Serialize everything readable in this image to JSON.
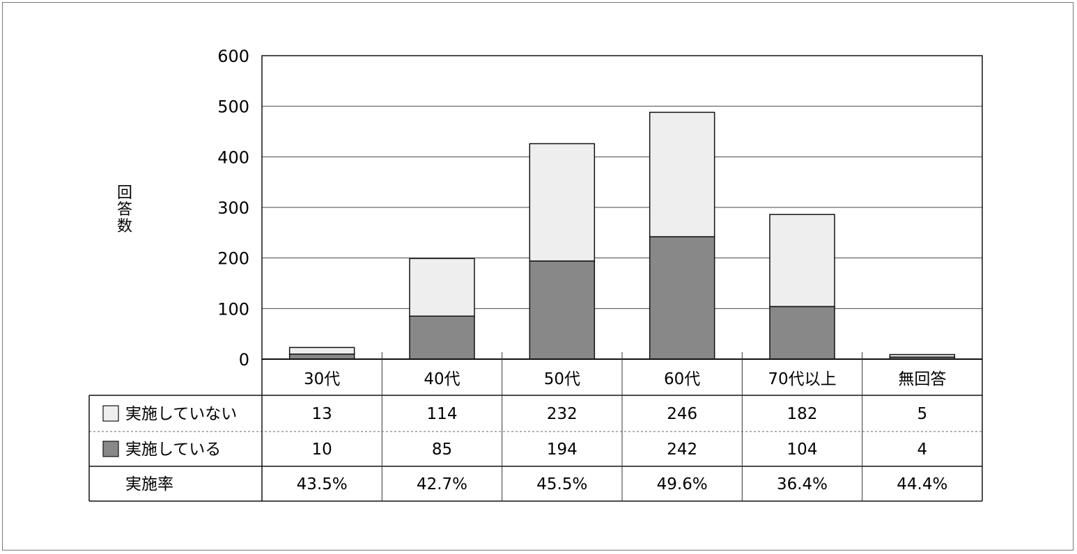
{
  "chart_data": {
    "type": "bar",
    "stacked": true,
    "ylabel": "回答数",
    "ylim": [
      0,
      600
    ],
    "yticks": [
      "0",
      "100",
      "200",
      "300",
      "400",
      "500",
      "600"
    ],
    "grid": true,
    "categories": [
      "30代",
      "40代",
      "50代",
      "60代",
      "70代以上",
      "無回答"
    ],
    "series": [
      {
        "name": "実施している",
        "values": [
          10,
          85,
          194,
          242,
          104,
          4
        ],
        "labels": [
          "10",
          "85",
          "194",
          "242",
          "104",
          "4"
        ],
        "color": "#888888"
      },
      {
        "name": "実施していない",
        "values": [
          13,
          114,
          232,
          246,
          182,
          5
        ],
        "labels": [
          "13",
          "114",
          "232",
          "246",
          "182",
          "5"
        ],
        "color": "#eeeeee"
      }
    ],
    "rate_row": {
      "name": "実施率",
      "values": [
        "43.5%",
        "42.7%",
        "45.5%",
        "49.6%",
        "36.4%",
        "44.4%"
      ]
    }
  }
}
